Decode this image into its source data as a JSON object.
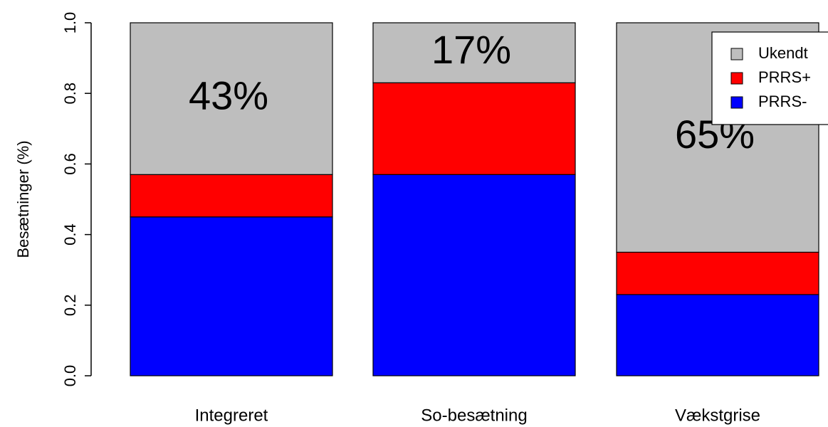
{
  "chart_data": {
    "type": "bar",
    "stacked": true,
    "ylabel": "Besætninger (%)",
    "categories": [
      "Integreret",
      "So-besætning",
      "Vækstgrise"
    ],
    "series": [
      {
        "name": "PRRS-",
        "color": "#0000ff",
        "values": [
          0.45,
          0.57,
          0.23
        ]
      },
      {
        "name": "PRRS+",
        "color": "#ff0000",
        "values": [
          0.12,
          0.26,
          0.12
        ]
      },
      {
        "name": "Ukendt",
        "color": "#bebebe",
        "values": [
          0.43,
          0.17,
          0.65
        ],
        "value_labels": [
          "43%",
          "17%",
          "65%"
        ]
      }
    ],
    "ylim": [
      0,
      1
    ],
    "yticks": [
      {
        "value": 0,
        "label": "0.0"
      },
      0.2,
      0.4,
      0.6,
      0.8,
      {
        "value": 1,
        "label": "1.0"
      }
    ],
    "legend": "top-right"
  }
}
